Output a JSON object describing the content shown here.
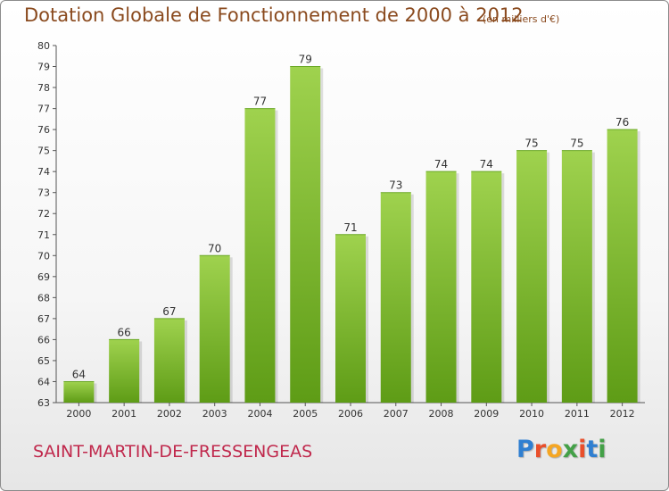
{
  "header": {
    "title": "Dotation Globale de Fonctionnement de 2000 à 2012",
    "unit": "(en milliers d'€)"
  },
  "footer": {
    "commune": "SAINT-MARTIN-DE-FRESSENGEAS",
    "logo": "Proxiti",
    "logo_colors": [
      "#2f7fd1",
      "#e94f2b",
      "#f5a623",
      "#43a047",
      "#e94f2b",
      "#2f7fd1",
      "#43a047"
    ]
  },
  "colors": {
    "bar_top": "#9fd24e",
    "bar_bottom": "#5e9c16",
    "axis": "#555555",
    "grid": "#d0d0d0",
    "text": "#333333",
    "title": "#8a4a1e",
    "commune": "#c0284c"
  },
  "chart_data": {
    "type": "bar",
    "title": "Dotation Globale de Fonctionnement de 2000 à 2012",
    "categories": [
      "2000",
      "2001",
      "2002",
      "2003",
      "2004",
      "2005",
      "2006",
      "2007",
      "2008",
      "2009",
      "2010",
      "2011",
      "2012"
    ],
    "values": [
      64,
      66,
      67,
      70,
      77,
      79,
      71,
      73,
      74,
      74,
      75,
      75,
      76
    ],
    "ylim": [
      63,
      80
    ],
    "yticks": [
      63,
      64,
      65,
      66,
      67,
      68,
      69,
      70,
      71,
      72,
      73,
      74,
      75,
      76,
      77,
      78,
      79,
      80
    ],
    "xlabel": "",
    "ylabel": "",
    "grid": false,
    "legend": "none"
  }
}
